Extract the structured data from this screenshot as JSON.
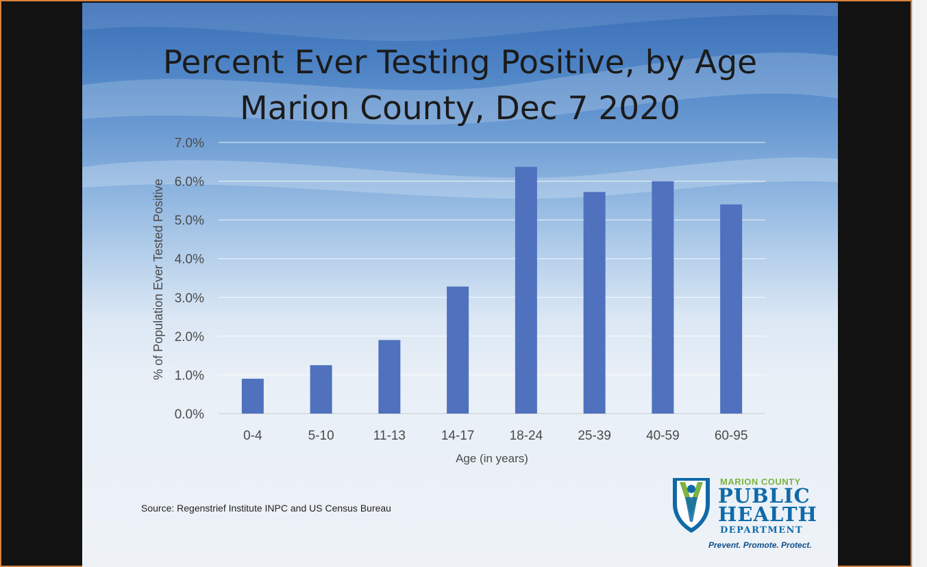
{
  "slide": {
    "title_line1": "Percent Ever Testing Positive, by Age",
    "title_line2": "Marion County, Dec 7 2020",
    "source": "Source: Regenstrief Institute INPC and US Census Bureau"
  },
  "logo": {
    "county": "MARION COUNTY",
    "public": "PUBLIC",
    "health": "HEALTH",
    "department": "DEPARTMENT",
    "tagline": "Prevent. Promote. Protect."
  },
  "colors": {
    "bar": "#4f71be",
    "gridline": "#ffffff",
    "axis_text": "#4a4a4a",
    "logo_blue": "#0f6aa8",
    "logo_green": "#7cb342"
  },
  "chart_data": {
    "type": "bar",
    "title": "Percent Ever Testing Positive, by Age Marion County, Dec 7 2020",
    "xlabel": "Age (in years)",
    "ylabel": "% of Population Ever Tested Positive",
    "categories": [
      "0-4",
      "5-10",
      "11-13",
      "14-17",
      "18-24",
      "25-39",
      "40-59",
      "60-95"
    ],
    "values": [
      0.9,
      1.25,
      1.9,
      3.28,
      6.37,
      5.72,
      6.0,
      5.4
    ],
    "ylim": [
      0,
      7
    ],
    "yticks": [
      0,
      1,
      2,
      3,
      4,
      5,
      6,
      7
    ],
    "ytick_labels": [
      "0.0%",
      "1.0%",
      "2.0%",
      "3.0%",
      "4.0%",
      "5.0%",
      "6.0%",
      "7.0%"
    ],
    "grid": true,
    "legend": "none"
  }
}
